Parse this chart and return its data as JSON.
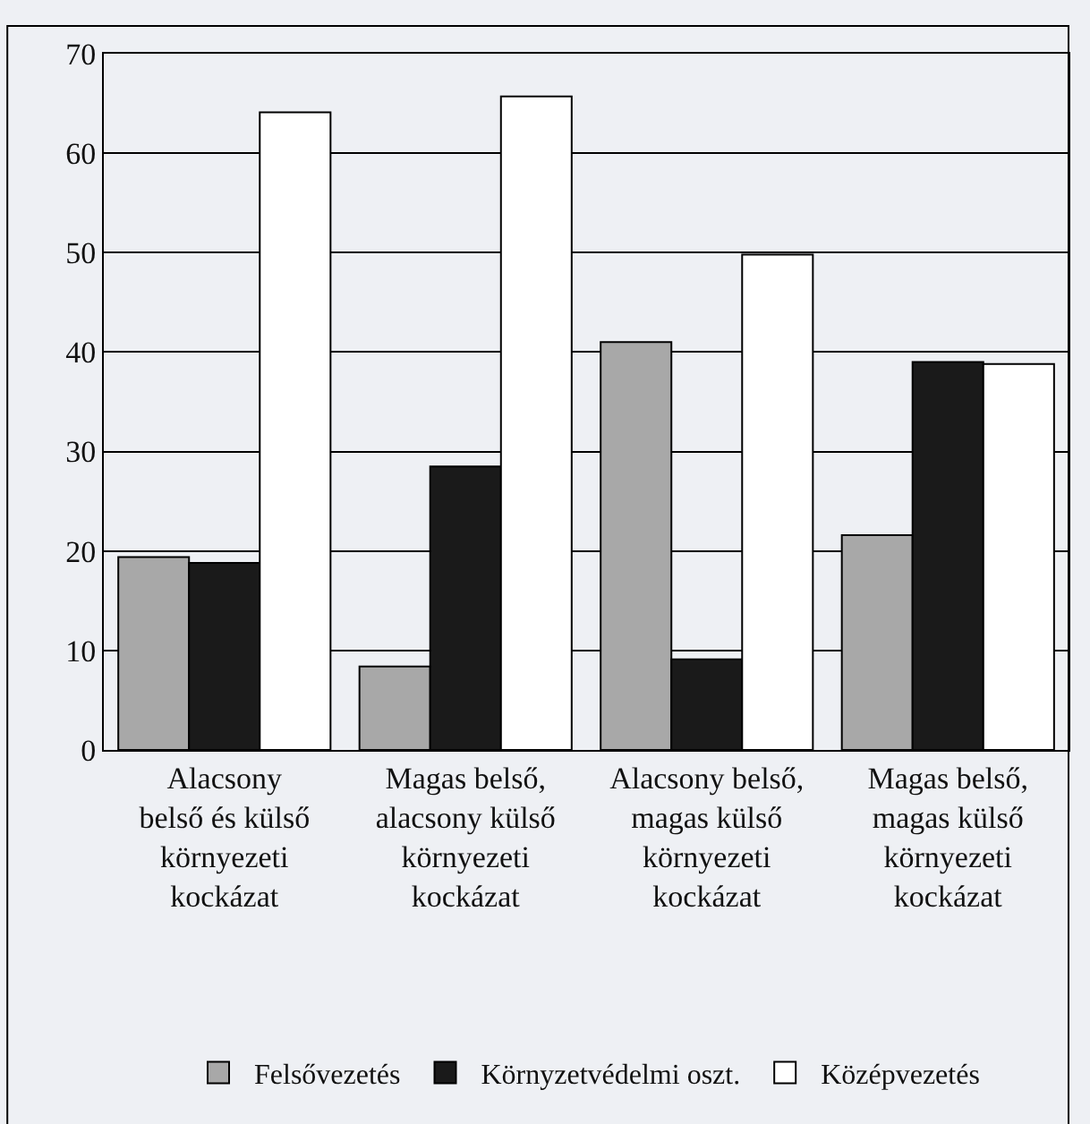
{
  "chart_data": {
    "type": "bar",
    "categories": [
      "Alacsony\nbelső és külső\nkörnyezeti\nkockázat",
      "Magas belső,\nalacsony külső\nkörnyezeti\nkockázat",
      "Alacsony belső,\nmagas külső\nkörnyezeti\nkockázat",
      "Magas belső,\nmagas külső\nkörnyezeti\nkockázat"
    ],
    "series": [
      {
        "name": "Felsővezetés",
        "color": "#a8a8a8",
        "values": [
          19.4,
          8.4,
          41,
          21.6
        ]
      },
      {
        "name": "Környzetvédelmi oszt.",
        "color": "#1a1a1a",
        "values": [
          18.8,
          28.5,
          9.1,
          39
        ]
      },
      {
        "name": "Középvezetés",
        "color": "#ffffff",
        "values": [
          64.1,
          65.7,
          49.8,
          38.8
        ]
      }
    ],
    "ylim": [
      0,
      70
    ],
    "yticks": [
      0,
      10,
      20,
      30,
      40,
      50,
      60,
      70
    ],
    "grid": "y",
    "legend": "bottom"
  }
}
